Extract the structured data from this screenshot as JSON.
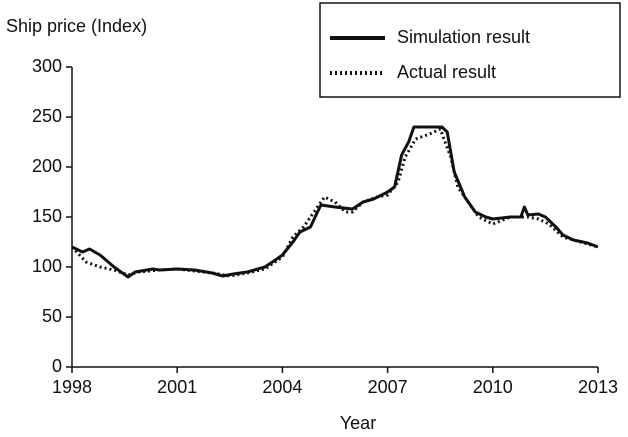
{
  "chart_data": {
    "type": "line",
    "y_label": "Ship price (Index)",
    "x_label": "Year",
    "xlim": [
      1998,
      2013
    ],
    "xticks": [
      1998,
      2001,
      2004,
      2007,
      2010,
      2013
    ],
    "ylim": [
      0,
      300
    ],
    "yticks": [
      0,
      50,
      100,
      150,
      200,
      250,
      300
    ],
    "grid": false,
    "legend": "top-right",
    "series": [
      {
        "name": "Simulation result",
        "color": "#111111",
        "style": "solid",
        "x": [
          1998,
          1998.3,
          1998.5,
          1998.8,
          1999.2,
          1999.6,
          1999.8,
          2000.3,
          2000.5,
          2001,
          2001.5,
          2002,
          2002.3,
          2002.6,
          2003,
          2003.5,
          2003.8,
          2004,
          2004.3,
          2004.5,
          2004.8,
          2005,
          2005.1,
          2005.5,
          2006,
          2006.3,
          2006.6,
          2007,
          2007.2,
          2007.4,
          2007.6,
          2007.75,
          2008.55,
          2008.7,
          2008.9,
          2009.2,
          2009.5,
          2009.8,
          2010,
          2010.5,
          2010.8,
          2010.9,
          2011,
          2011.3,
          2011.5,
          2011.8,
          2012,
          2012.3,
          2012.7,
          2013
        ],
        "values": [
          120,
          115,
          118,
          112,
          100,
          90,
          95,
          98,
          97,
          98,
          97,
          94,
          91,
          93,
          95,
          100,
          107,
          112,
          125,
          135,
          140,
          155,
          162,
          160,
          158,
          165,
          168,
          175,
          180,
          212,
          225,
          240,
          240,
          235,
          195,
          170,
          155,
          150,
          148,
          150,
          150,
          160,
          152,
          153,
          150,
          140,
          132,
          127,
          124,
          120
        ]
      },
      {
        "name": "Actual result",
        "color": "#111111",
        "style": "dotted",
        "x": [
          1998,
          1998.4,
          1998.8,
          1999.2,
          1999.6,
          1999.9,
          2000.5,
          2001,
          2001.5,
          2002,
          2002.5,
          2003,
          2003.5,
          2004,
          2004.3,
          2004.6,
          2005,
          2005.2,
          2005.5,
          2005.8,
          2006,
          2006.3,
          2006.7,
          2007,
          2007.3,
          2007.5,
          2007.8,
          2008.2,
          2008.5,
          2008.8,
          2009,
          2009.3,
          2009.6,
          2010,
          2010.5,
          2011,
          2011.3,
          2011.6,
          2012,
          2012.5,
          2013
        ],
        "values": [
          120,
          105,
          100,
          97,
          92,
          95,
          97,
          98,
          96,
          94,
          91,
          94,
          98,
          110,
          130,
          140,
          160,
          170,
          165,
          155,
          155,
          165,
          170,
          172,
          185,
          210,
          228,
          233,
          238,
          210,
          180,
          165,
          150,
          143,
          150,
          150,
          148,
          143,
          130,
          125,
          120
        ]
      }
    ]
  }
}
